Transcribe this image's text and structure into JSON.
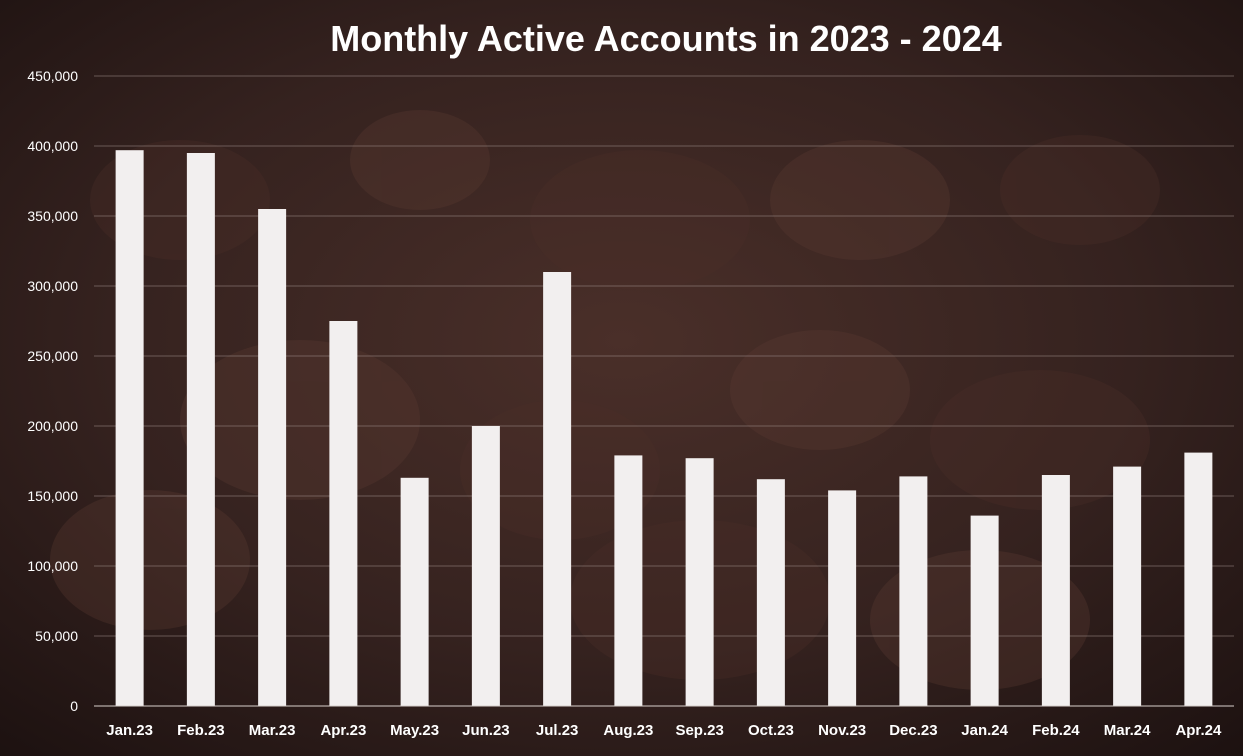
{
  "chart_data": {
    "type": "bar",
    "title": "Monthly Active Accounts in 2023 - 2024",
    "xlabel": "",
    "ylabel": "",
    "ylim": [
      0,
      450000
    ],
    "yticks": [
      "0",
      "50,000",
      "100,000",
      "150,000",
      "200,000",
      "250,000",
      "300,000",
      "350,000",
      "400,000",
      "450,000"
    ],
    "ytick_values": [
      0,
      50000,
      100000,
      150000,
      200000,
      250000,
      300000,
      350000,
      400000,
      450000
    ],
    "categories": [
      "Jan.23",
      "Feb.23",
      "Mar.23",
      "Apr.23",
      "May.23",
      "Jun.23",
      "Jul.23",
      "Aug.23",
      "Sep.23",
      "Oct.23",
      "Nov.23",
      "Dec.23",
      "Jan.24",
      "Feb.24",
      "Mar.24",
      "Apr.24"
    ],
    "values": [
      397000,
      395000,
      355000,
      275000,
      163000,
      200000,
      310000,
      179000,
      177000,
      162000,
      154000,
      164000,
      136000,
      165000,
      171000,
      181000
    ],
    "grid": true,
    "legend": "none",
    "colors": {
      "bar": "#f2efef",
      "background": "#2a1a18",
      "text": "#ffffff"
    }
  }
}
